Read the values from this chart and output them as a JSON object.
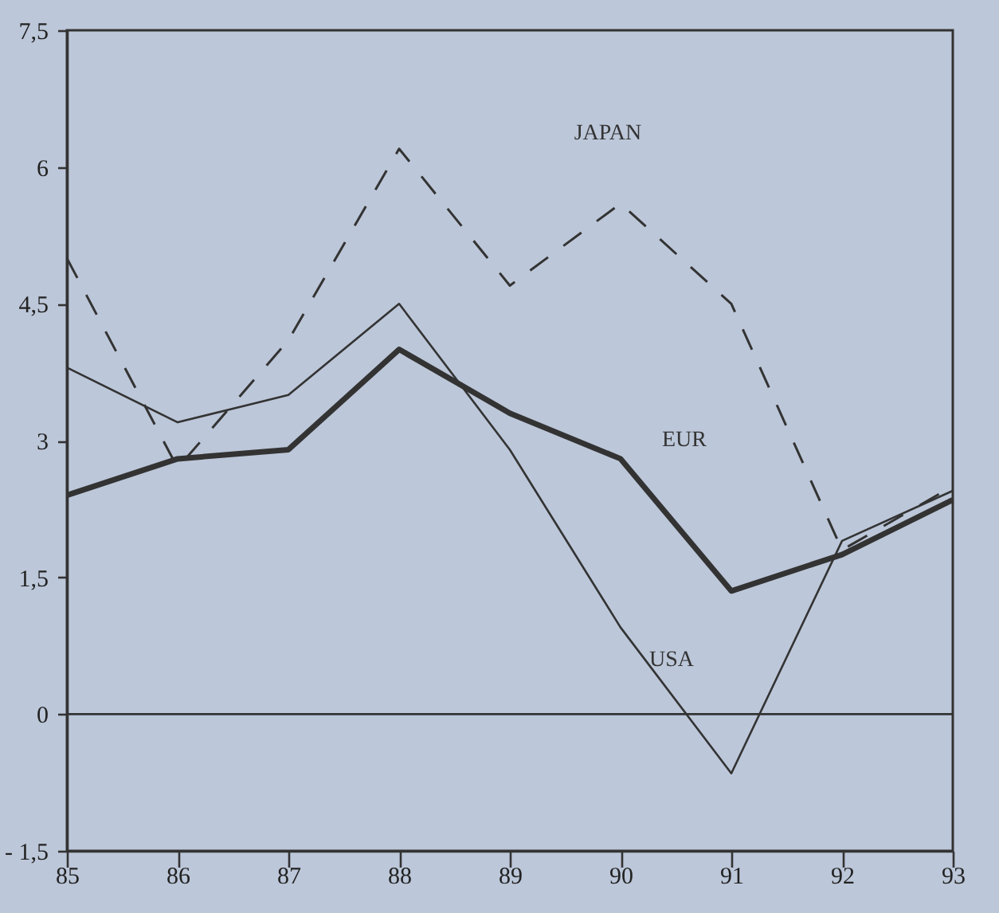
{
  "chart_data": {
    "type": "line",
    "x": [
      85,
      86,
      87,
      88,
      89,
      90,
      91,
      92,
      93
    ],
    "series": [
      {
        "name": "JAPAN",
        "color": "#333333",
        "line_style": "dashed",
        "values": [
          5.0,
          2.7,
          4.1,
          6.2,
          4.7,
          5.6,
          4.5,
          1.8,
          2.5
        ]
      },
      {
        "name": "EUR",
        "color": "#333333",
        "line_style": "solid",
        "values": [
          2.4,
          2.8,
          2.9,
          4.0,
          3.3,
          2.8,
          1.35,
          1.75,
          2.35
        ]
      },
      {
        "name": "USA",
        "color": "#333333",
        "line_style": "solid",
        "values": [
          3.8,
          3.2,
          3.5,
          4.5,
          2.9,
          0.95,
          -0.65,
          1.9,
          2.45
        ]
      }
    ],
    "xlim": [
      85,
      93
    ],
    "xticks": [
      85,
      86,
      87,
      88,
      89,
      90,
      91,
      92,
      93
    ],
    "ylim": [
      -1.5,
      7.5
    ],
    "yticks": [
      {
        "value": -1.5,
        "label": "- 1,5"
      },
      {
        "value": 0,
        "label": "0"
      },
      {
        "value": 1.5,
        "label": "1,5"
      },
      {
        "value": 3,
        "label": "3"
      },
      {
        "value": 4.5,
        "label": "4,5"
      },
      {
        "value": 6,
        "label": "6"
      },
      {
        "value": 7.5,
        "label": "7,5"
      }
    ],
    "ref_lines": [
      {
        "axis": "y",
        "value": 0,
        "color": "#333333"
      }
    ],
    "grid": false,
    "marker": "none"
  }
}
